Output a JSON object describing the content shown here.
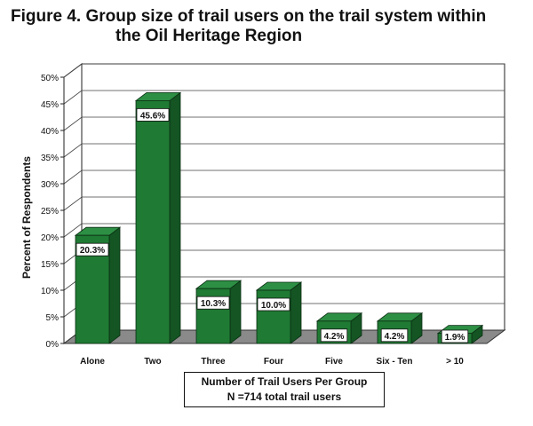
{
  "figure": {
    "title_line1": "Figure 4.  Group size of trail users on the trail system within",
    "title_line2": "the Oil Heritage Region"
  },
  "colors": {
    "bar_front": "#1f7a33",
    "bar_top": "#2d8f44",
    "bar_side": "#145523",
    "floor": "#8a8a8a",
    "back_wall": "#ffffff"
  },
  "chart_data": {
    "type": "bar",
    "title": "Figure 4.  Group size of trail users on the trail system within the Oil Heritage Region",
    "categories": [
      "Alone",
      "Two",
      "Three",
      "Four",
      "Five",
      "Six - Ten",
      "> 10"
    ],
    "values": [
      20.3,
      45.6,
      10.3,
      10.0,
      4.2,
      4.2,
      1.9
    ],
    "data_labels": [
      "20.3%",
      "45.6%",
      "10.3%",
      "10.0%",
      "4.2%",
      "4.2%",
      "1.9%"
    ],
    "ylabel": "Percent of Respondents",
    "xlabel_line1": "Number of Trail Users Per Group",
    "xlabel_line2": "N =714 total trail users",
    "ylim": [
      0,
      50
    ],
    "yticks": [
      "0%",
      "5%",
      "10%",
      "15%",
      "20%",
      "25%",
      "30%",
      "35%",
      "40%",
      "45%",
      "50%"
    ],
    "grid": true,
    "style": "3d"
  }
}
